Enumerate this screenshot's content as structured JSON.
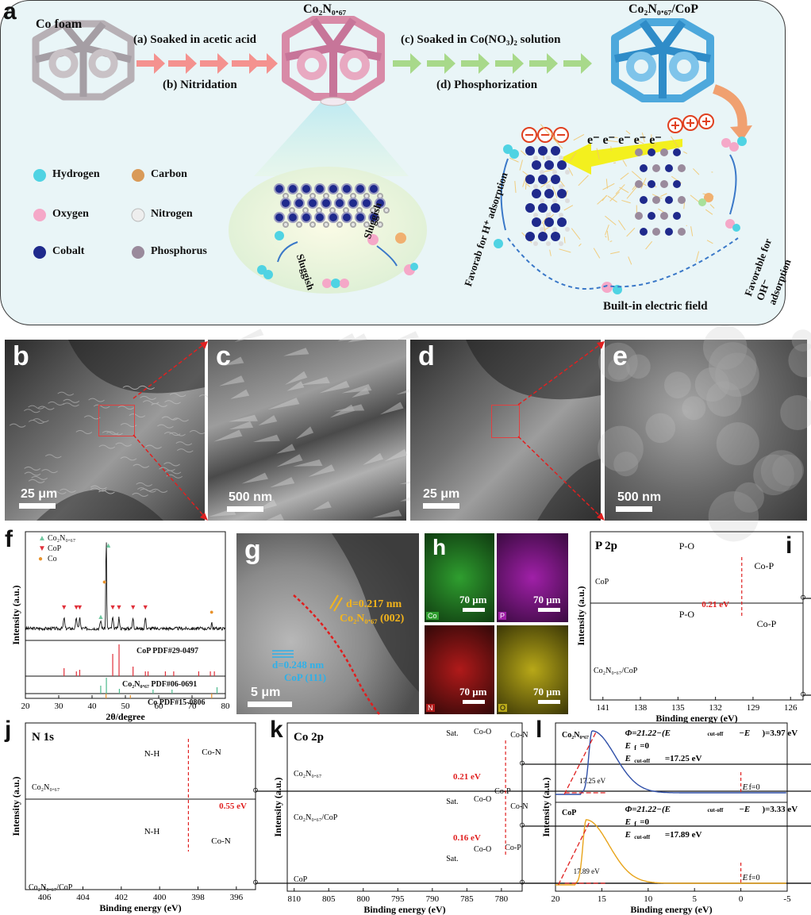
{
  "scheme": {
    "letter": "a",
    "materials": {
      "co_foam": "Co foam",
      "co2n": "Co₂N₀.₆₇",
      "composite": "Co₂N₀.₆₇/CoP"
    },
    "steps": {
      "a": "(a) Soaked in acetic acid",
      "b": "(b) Nitridation",
      "c": "(c) Soaked in Co(NO₃)₂ solution",
      "d": "(d) Phosphorization"
    },
    "legend": [
      {
        "label": "Hydrogen",
        "color": "#4fd3e3"
      },
      {
        "label": "Carbon",
        "color": "#d99a58"
      },
      {
        "label": "Oxygen",
        "color": "#f5a8c8"
      },
      {
        "label": "Nitrogen",
        "color": "#e6e6e6"
      },
      {
        "label": "Cobalt",
        "color": "#1f2a8c"
      },
      {
        "label": "Phosphorus",
        "color": "#9a8a9c"
      }
    ],
    "sluggish_1": "Sluggish",
    "sluggish_2": "Sluggish",
    "electrons": "e⁻ e⁻ e⁻ e⁻ e⁻",
    "h_adsorption": "Favorab for H⁺ adsorption",
    "oh_adsorption": "Favorable for OH⁻ adsorption",
    "field": "Built-in electric field"
  },
  "sem": {
    "b": {
      "letter": "b",
      "scale": "25 μm"
    },
    "c": {
      "letter": "c",
      "scale": "500 nm"
    },
    "d": {
      "letter": "d",
      "scale": "25 μm"
    },
    "e": {
      "letter": "e",
      "scale": "500 nm"
    }
  },
  "xrd": {
    "letter": "f",
    "legend": [
      {
        "label": "Co₂N₀.₆₇",
        "color": "#6fc7a0",
        "marker": "triangle-up"
      },
      {
        "label": "CoP",
        "color": "#e0303a",
        "marker": "triangle-down"
      },
      {
        "label": "Co",
        "color": "#e8922b",
        "marker": "circle"
      }
    ],
    "refs": [
      {
        "label": "CoP PDF#29-0497",
        "color": "#e0303a"
      },
      {
        "label": "Co₂N₀.₆₇ PDF#06-0691",
        "color": "#4cb98c"
      },
      {
        "label": "Co PDF#15-0806",
        "color": "#e8922b"
      }
    ]
  },
  "tem": {
    "letter": "g",
    "d1": "d=0.217 nm",
    "d1_plane": "Co₂N₀.₆₇ (002)",
    "d2": "d=0.248 nm",
    "d2_plane": "CoP (111)",
    "scale": "5 μm"
  },
  "mapping": {
    "letter": "h",
    "tiles": [
      {
        "tag": "Co",
        "scale": "70 μm",
        "color": "#2f9e2f"
      },
      {
        "tag": "P",
        "scale": "70 μm",
        "color": "#a020a8"
      },
      {
        "tag": "N",
        "scale": "70 μm",
        "color": "#b01a1a"
      },
      {
        "tag": "O",
        "scale": "70 μm",
        "color": "#b8a818"
      }
    ]
  },
  "chart_data": [
    {
      "panel": "f",
      "type": "line",
      "xlabel": "2θ/degree",
      "ylabel": "Intensity (a.u.)",
      "xlim": [
        20,
        80
      ],
      "xticks": [
        20,
        30,
        40,
        50,
        60,
        70,
        80
      ],
      "peaks": {
        "Co2N0.67": [
          42.6,
          44.3
        ],
        "CoP": [
          31.6,
          35.3,
          36.3,
          46.2,
          48.1,
          52.3,
          56.0
        ],
        "Co": [
          44.2,
          75.9
        ]
      },
      "ref_lines": {
        "CoP": [
          31.6,
          35.3,
          36.3,
          46.2,
          48.1,
          52.3,
          56.0,
          56.8,
          62.0,
          64.5,
          72.0,
          75.5,
          76.7
        ],
        "Co2N0.67": [
          42.6,
          44.3,
          48.2,
          58.3,
          64.0,
          77.5
        ],
        "Co": [
          44.2,
          51.5,
          75.9
        ]
      }
    },
    {
      "panel": "i",
      "type": "line",
      "title": "P 2p",
      "xlabel": "Binding energy (eV)",
      "ylabel": "Intensity (a.u.)",
      "xlim": [
        142,
        125
      ],
      "xticks": [
        141,
        138,
        135,
        132,
        129,
        126
      ],
      "samples": [
        "CoP",
        "Co₂N₀.₆₇/CoP"
      ],
      "peaks": {
        "P-O": 134.2,
        "Co-P": 129.9
      },
      "shift": "0.21 eV"
    },
    {
      "panel": "j",
      "type": "line",
      "title": "N 1s",
      "xlabel": "Binding energy (eV)",
      "ylabel": "Intensity (a.u.)",
      "xlim": [
        407,
        395
      ],
      "xticks": [
        406,
        404,
        402,
        400,
        398,
        396
      ],
      "samples": [
        "Co₂N₀.₆₇",
        "Co₂N₀.₆₇/CoP"
      ],
      "peaks": {
        "N-H": 399.6,
        "Co-N": 398.4
      },
      "shift": "0.55 eV"
    },
    {
      "panel": "k",
      "type": "line",
      "title": "Co 2p",
      "xlabel": "Binding energy (eV)",
      "ylabel": "Intensity (a.u.)",
      "xlim": [
        811,
        777
      ],
      "xticks": [
        810,
        805,
        800,
        795,
        790,
        785,
        780
      ],
      "samples": [
        "Co₂N₀.₆₇",
        "Co₂N₀.₆₇/CoP",
        "CoP"
      ],
      "peak_labels": [
        "Sat.",
        "Co-O",
        "Co-N",
        "Co-P"
      ],
      "shifts": [
        "0.21 eV",
        "0.16 eV"
      ]
    },
    {
      "panel": "l",
      "type": "line",
      "xlabel": "Binding energy (eV)",
      "ylabel": "Intensity (a.u.)",
      "xlim": [
        20,
        -5
      ],
      "xticks": [
        20,
        15,
        10,
        5,
        0,
        -5
      ],
      "samples": [
        {
          "name": "Co₂N₀.₆₇",
          "cutoff": 17.25,
          "cutoff_label": "17.25 eV",
          "phi": "3.97 eV",
          "color": "#2f4fa8"
        },
        {
          "name": "CoP",
          "cutoff": 17.89,
          "cutoff_label": "17.89 eV",
          "phi": "3.33 eV",
          "color": "#e8a41a"
        }
      ],
      "ef": "E_f=0"
    }
  ]
}
